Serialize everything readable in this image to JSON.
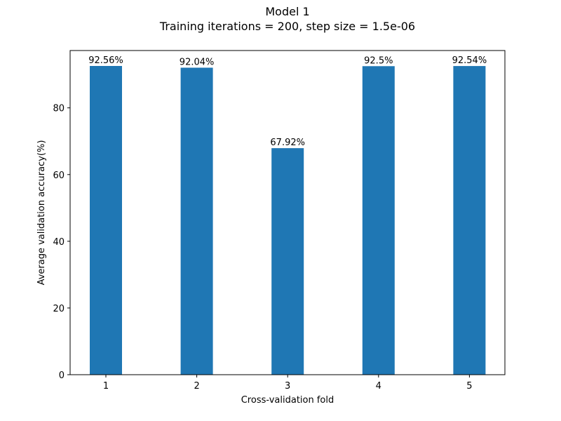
{
  "chart_data": {
    "type": "bar",
    "title": "Model 1",
    "subtitle": "Training iterations = 200, step size = 1.5e-06",
    "xlabel": "Cross-validation fold",
    "ylabel": "Average validation accuracy(%)",
    "categories": [
      "1",
      "2",
      "3",
      "4",
      "5"
    ],
    "values": [
      92.56,
      92.04,
      67.92,
      92.5,
      92.54
    ],
    "data_labels": [
      "92.56%",
      "92.04%",
      "67.92%",
      "92.5%",
      "92.54%"
    ],
    "yticks": [
      0,
      20,
      40,
      60,
      80
    ],
    "ylim": [
      0,
      97.188
    ],
    "grid": false,
    "bar_color": "#1f77b4"
  }
}
